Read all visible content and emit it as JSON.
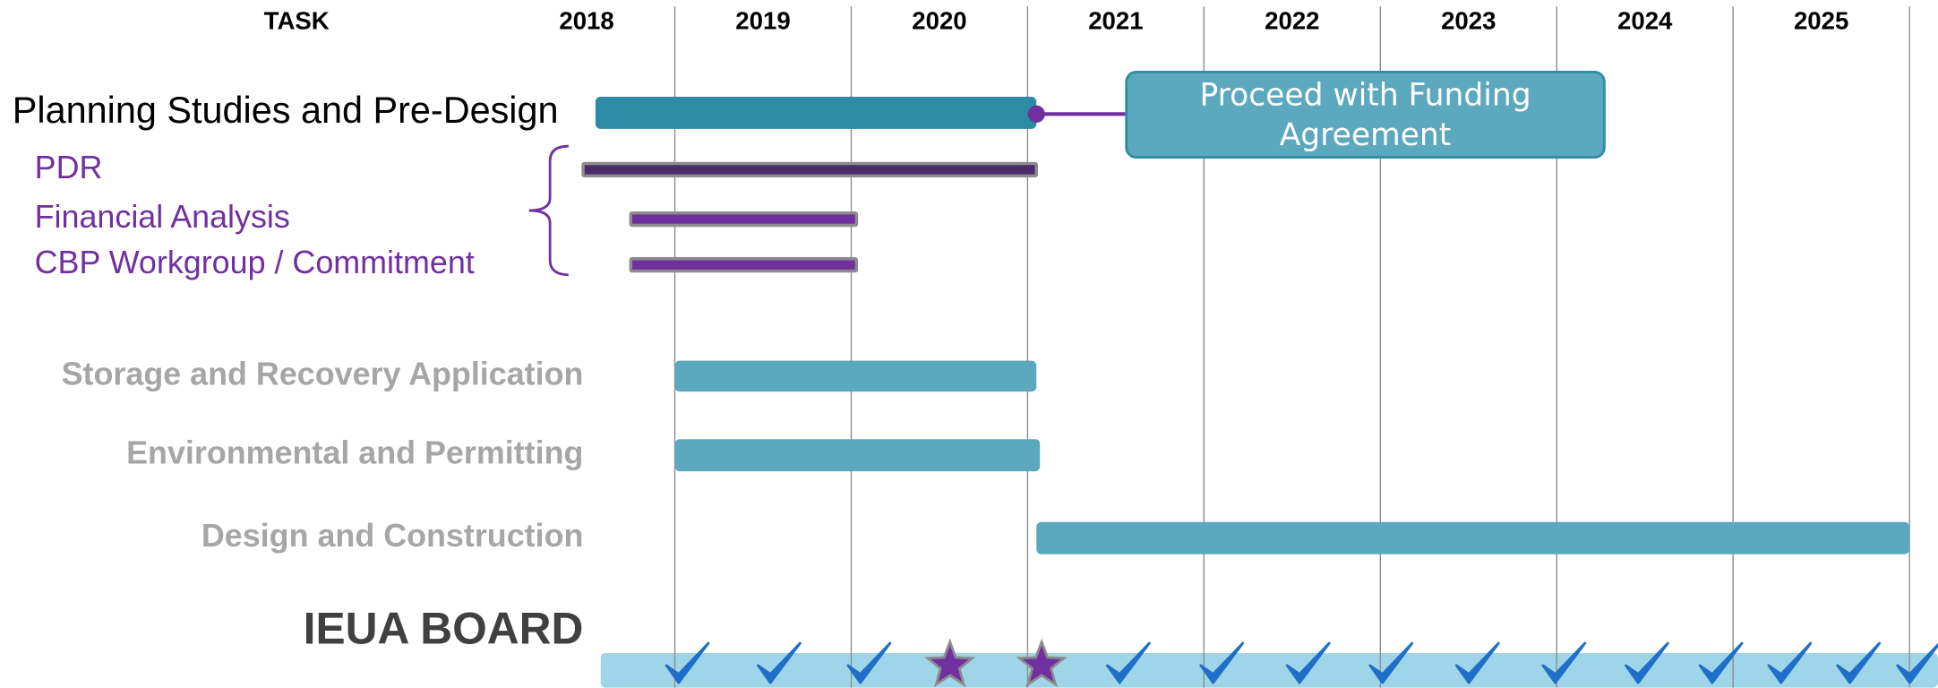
{
  "chart_data": {
    "type": "gantt",
    "task_header": "TASK",
    "xticks": [
      {
        "value": 2018.5,
        "label": "2018"
      },
      {
        "value": 2019.5,
        "label": "2019"
      },
      {
        "value": 2020.5,
        "label": "2020"
      },
      {
        "value": 2021.5,
        "label": "2021"
      },
      {
        "value": 2022.5,
        "label": "2022"
      },
      {
        "value": 2023.5,
        "label": "2023"
      },
      {
        "value": 2024.5,
        "label": "2024"
      },
      {
        "value": 2025.5,
        "label": "2025"
      }
    ],
    "xgrid": [
      2019,
      2020,
      2021,
      2022,
      2023,
      2024,
      2025,
      2026
    ],
    "tasks": [
      {
        "name": "Planning Studies and Pre-Design",
        "start": 2018.55,
        "end": 2021.05,
        "color": "#2e8ba6"
      },
      {
        "name": "PDR",
        "start": 2018.48,
        "end": 2021.05,
        "color": "#4b2c6b"
      },
      {
        "name": "Financial Analysis",
        "start": 2018.75,
        "end": 2020.03,
        "color": "#7030a0"
      },
      {
        "name": "CBP Workgroup / Commitment",
        "start": 2018.75,
        "end": 2020.03,
        "color": "#7030a0"
      },
      {
        "name": "Storage and Recovery Application",
        "start": 2019.0,
        "end": 2021.05,
        "color": "#5ba8bf"
      },
      {
        "name": "Environmental and Permitting",
        "start": 2019.0,
        "end": 2021.07,
        "color": "#5ba8bf"
      },
      {
        "name": "Design and Construction",
        "start": 2021.05,
        "end": 2026.0,
        "color": "#5ba8bf"
      }
    ],
    "annotation": {
      "text": "Proceed with Funding Agreement",
      "start": 2021.56,
      "end": 2024.27,
      "color": "#5ba8bf"
    },
    "board": {
      "name": "IEUA BOARD",
      "color": "#9fd5e8",
      "checks": [
        2019.05,
        2019.57,
        2020.08,
        2021.55,
        2022.08,
        2022.57,
        2023.04,
        2023.53,
        2024.02,
        2024.49,
        2024.91,
        2025.3,
        2025.69,
        2026.03
      ],
      "check_color": "#1f6fc9",
      "stars": [
        2020.56,
        2021.08
      ],
      "star_color": "#7030a0"
    }
  }
}
